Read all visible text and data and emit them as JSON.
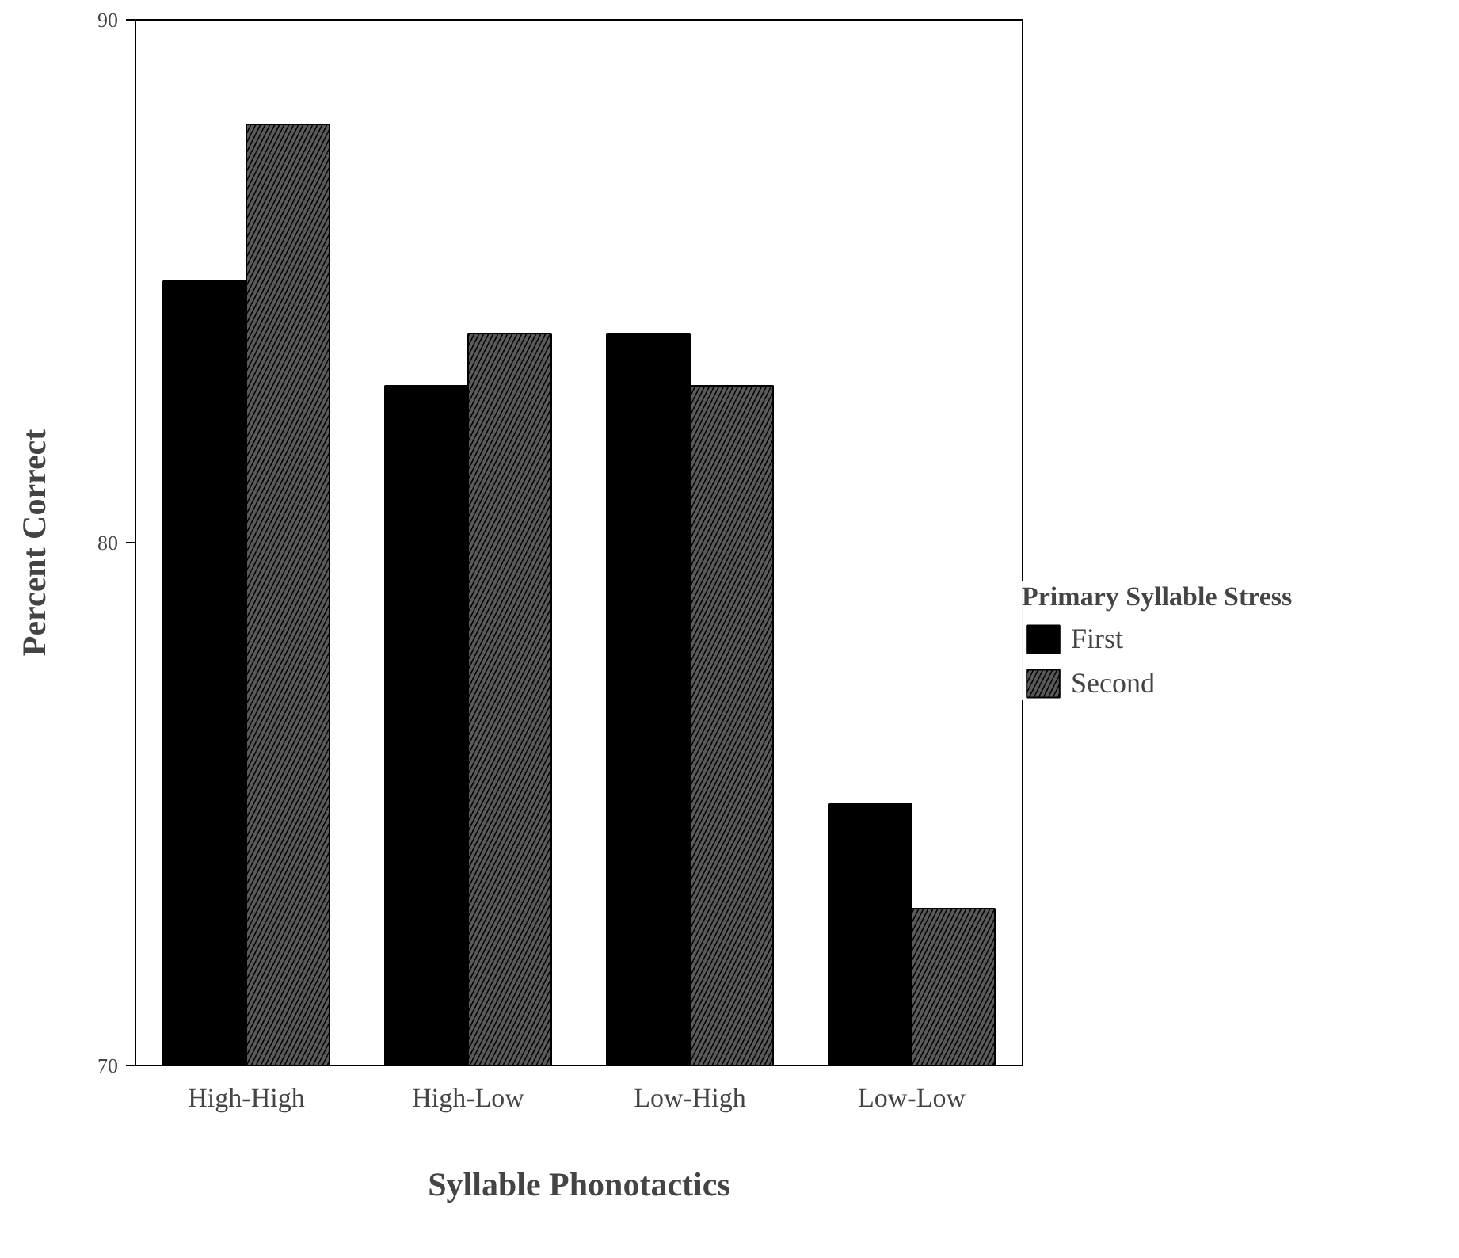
{
  "chart_data": {
    "type": "bar",
    "xlabel": "Syllable Phonotactics",
    "ylabel": "Percent Correct",
    "legend_title": "Primary Syllable Stress",
    "categories": [
      "High-High",
      "High-Low",
      "Low-High",
      "Low-Low"
    ],
    "series": [
      {
        "name": "First",
        "color": "#000000",
        "values": [
          85,
          83,
          84,
          75
        ]
      },
      {
        "name": "Second",
        "color": "#5a5a5a",
        "values": [
          88,
          84,
          83,
          73
        ]
      }
    ],
    "ylim": [
      70,
      90
    ],
    "yticks": [
      70,
      80,
      90
    ],
    "grid": false,
    "legend": "right"
  }
}
